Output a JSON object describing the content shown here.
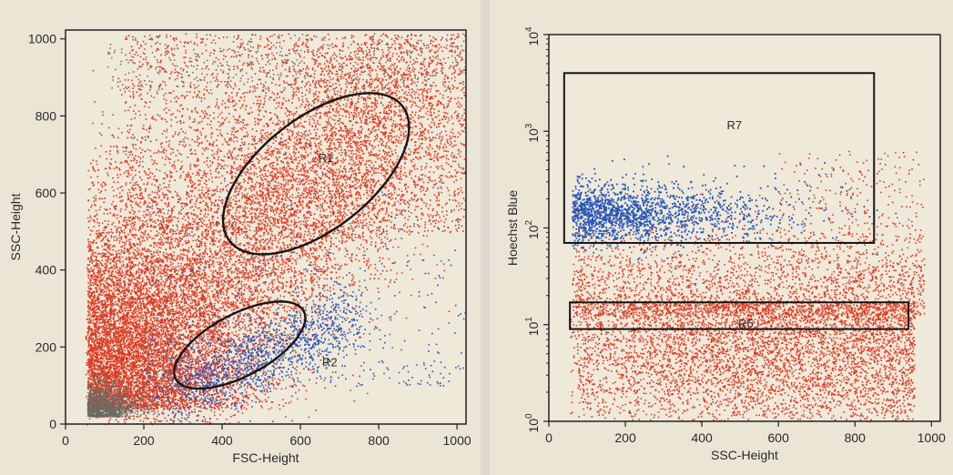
{
  "chart_data": [
    {
      "type": "scatter",
      "title": "",
      "xlabel": "FSC-Height",
      "ylabel": "SSC-Height",
      "xlim": [
        0,
        1023
      ],
      "ylim": [
        0,
        1023
      ],
      "x_ticks": [
        "0",
        "200",
        "400",
        "600",
        "800",
        "1000"
      ],
      "y_ticks": [
        "0",
        "200",
        "400",
        "600",
        "800",
        "1000"
      ],
      "grid": false,
      "colors": {
        "red": "#dd3a22",
        "blue": "#2456b8",
        "gray": "#6a6a62",
        "gate": "#151515"
      },
      "populations": [
        {
          "color": "red",
          "description": "dense main population"
        },
        {
          "color": "blue",
          "description": "small population low-right"
        },
        {
          "color": "gray",
          "description": "debris near origin"
        }
      ],
      "gates": [
        {
          "name": "R1",
          "shape": "ellipse",
          "cx": 640,
          "cy": 650,
          "rx": 280,
          "ry": 145,
          "angle_deg": -38
        },
        {
          "name": "R2",
          "shape": "ellipse",
          "cx": 445,
          "cy": 205,
          "rx": 185,
          "ry": 80,
          "angle_deg": -28
        }
      ],
      "gate_labels": [
        {
          "text": "R1",
          "x": 665,
          "y": 680
        },
        {
          "text": "R2",
          "x": 675,
          "y": 150
        }
      ]
    },
    {
      "type": "scatter",
      "title": "",
      "xlabel": "SSC-Height",
      "ylabel": "Hoechst Blue",
      "xlim": [
        0,
        1023
      ],
      "ylim": [
        1,
        10000
      ],
      "y_scale": "log",
      "x_ticks": [
        "0",
        "200",
        "400",
        "600",
        "800",
        "1000"
      ],
      "y_ticks": [
        {
          "base": "10",
          "exp": "0",
          "value": 1
        },
        {
          "base": "10",
          "exp": "1",
          "value": 10
        },
        {
          "base": "10",
          "exp": "2",
          "value": 100
        },
        {
          "base": "10",
          "exp": "3",
          "value": 1000
        },
        {
          "base": "10",
          "exp": "4",
          "value": 10000
        }
      ],
      "grid": false,
      "colors": {
        "red": "#dd3a22",
        "blue": "#2456b8",
        "gate": "#151515"
      },
      "populations": [
        {
          "color": "blue",
          "description": "Hoechst-bright population"
        },
        {
          "color": "red",
          "description": "Hoechst-dim population"
        }
      ],
      "gates": [
        {
          "name": "R7",
          "shape": "rectangle",
          "x": [
            40,
            850
          ],
          "y": [
            70,
            4000
          ]
        },
        {
          "name": "R5",
          "shape": "rectangle",
          "x": [
            55,
            940
          ],
          "y": [
            9,
            17
          ]
        }
      ],
      "gate_labels": [
        {
          "text": "R7",
          "x": 485,
          "y": 1050
        },
        {
          "text": "R5",
          "x": 515,
          "y": 9.3
        }
      ]
    }
  ]
}
